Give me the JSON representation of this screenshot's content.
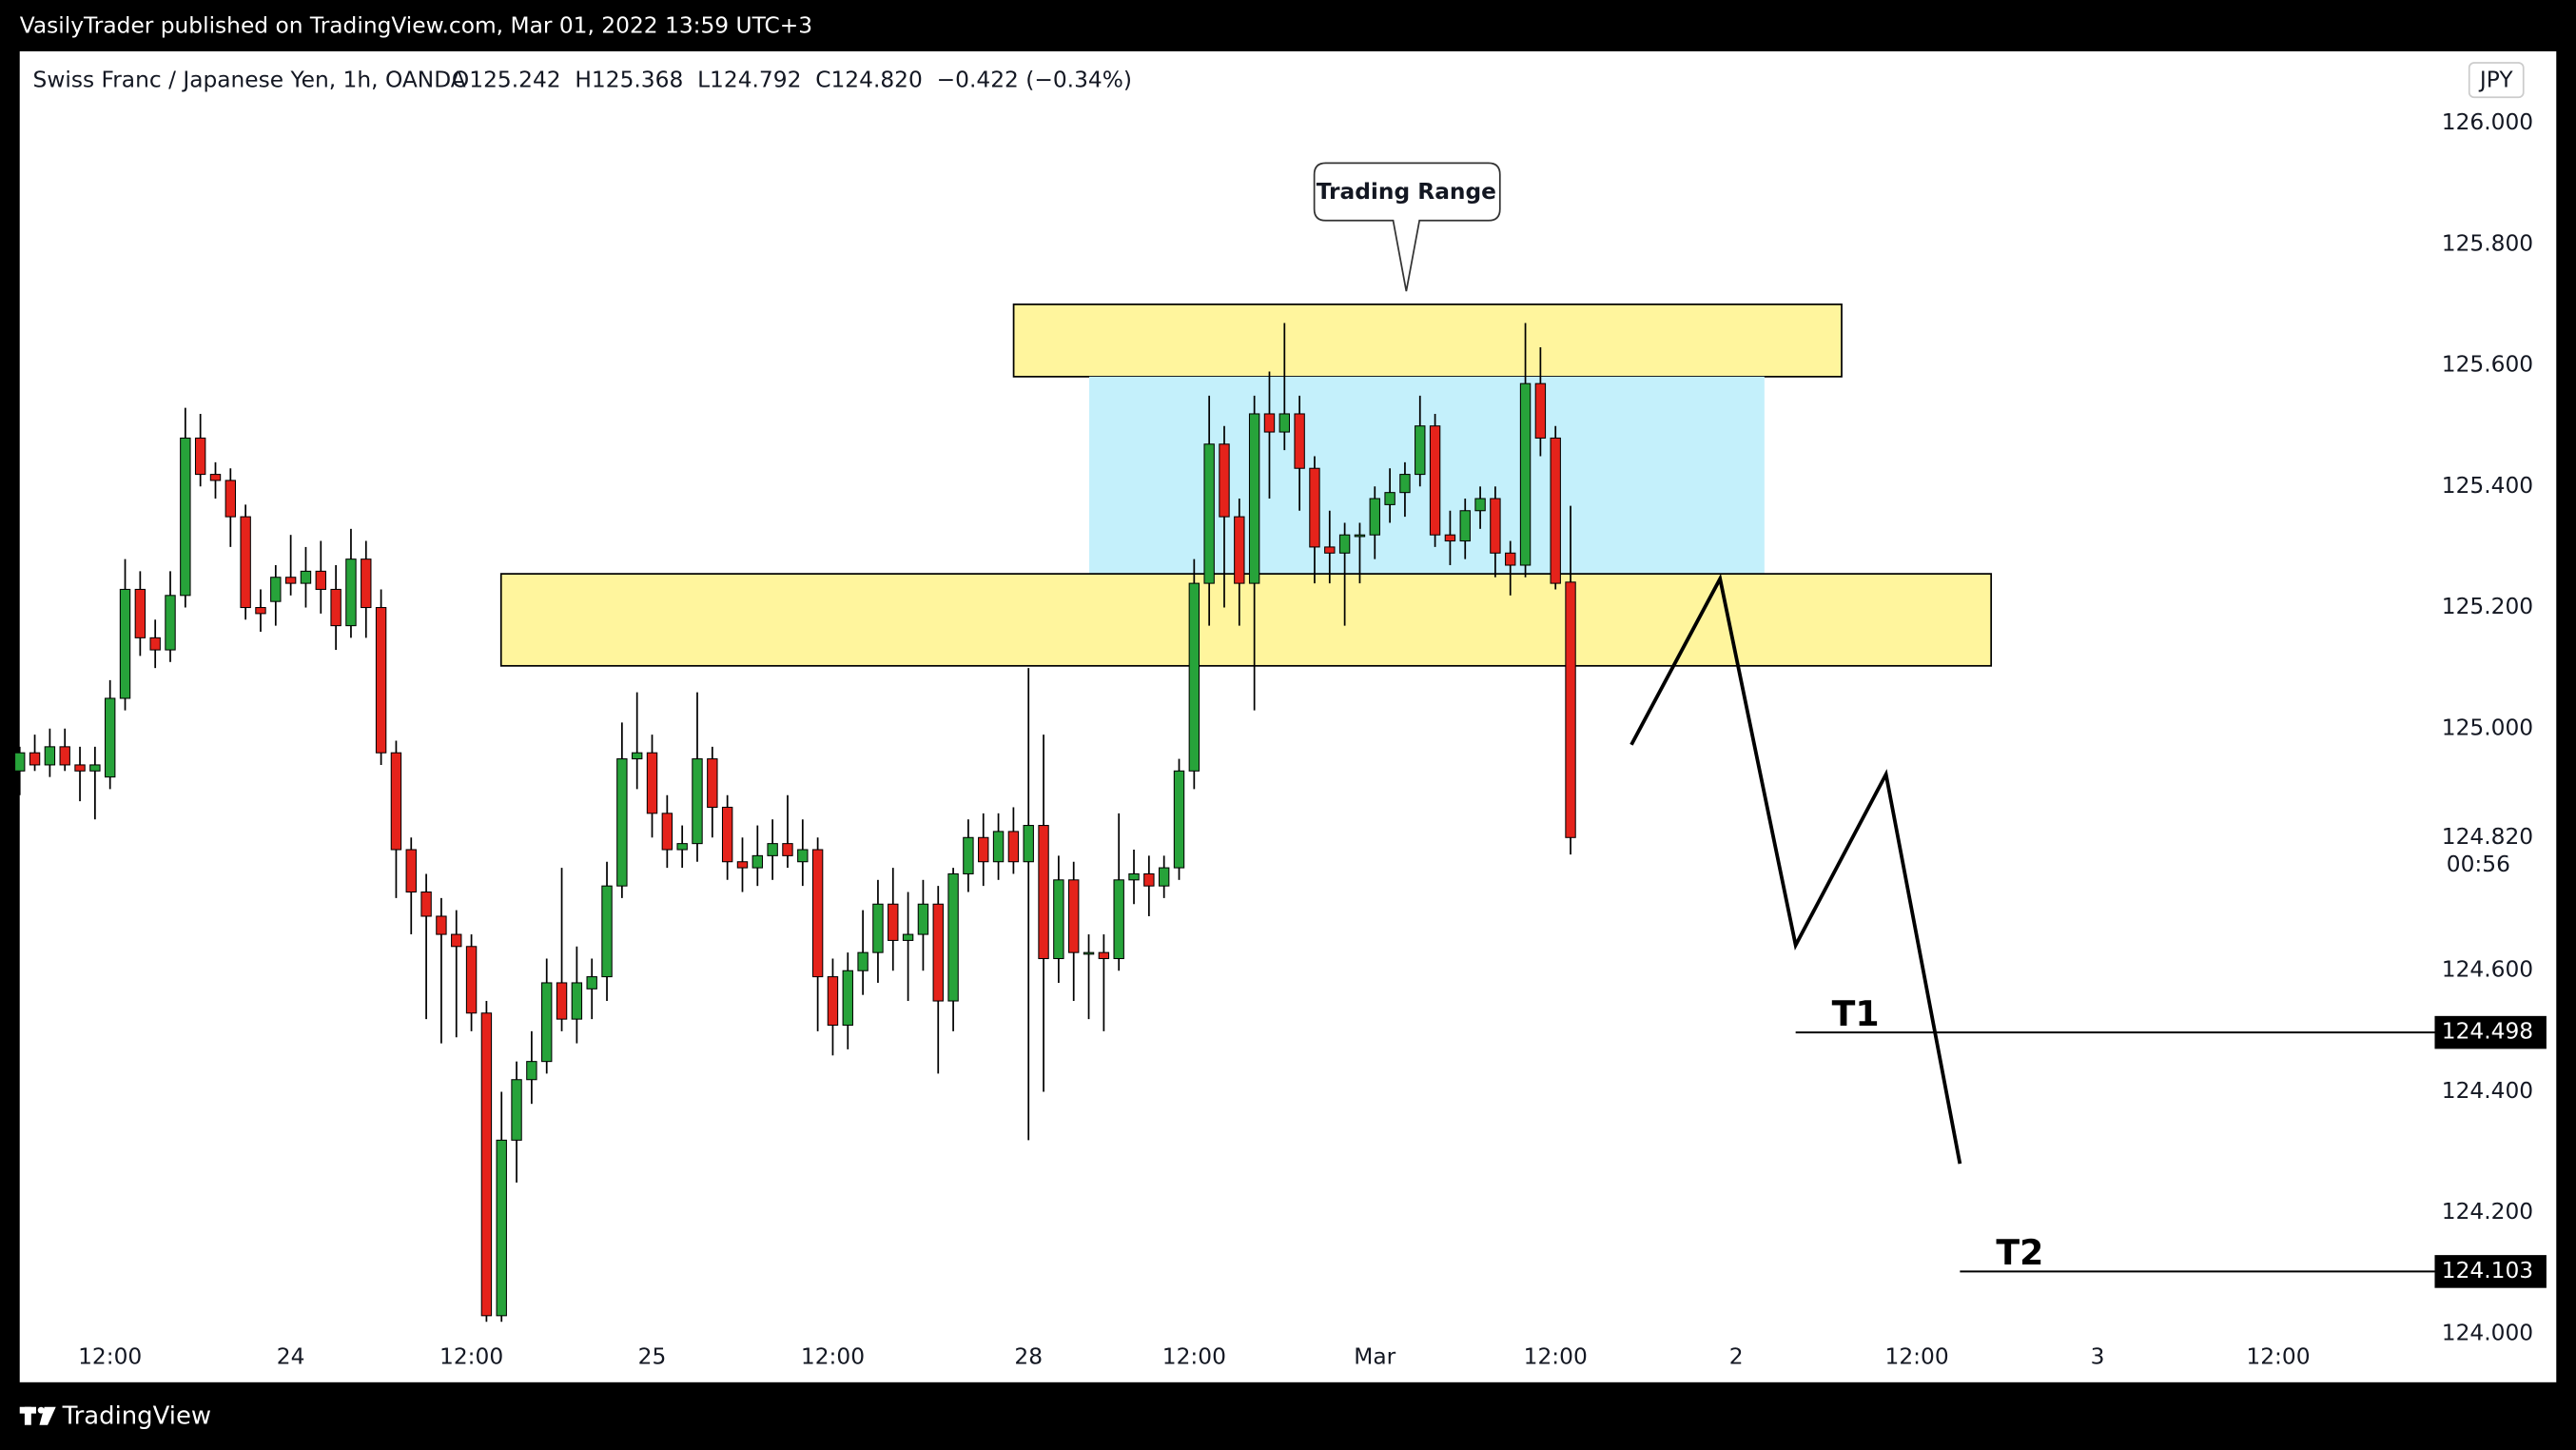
{
  "header": {
    "published": "VasilyTrader published on TradingView.com, Mar 01, 2022 13:59 UTC+3"
  },
  "footer": {
    "brand": "TradingView"
  },
  "chart_data": {
    "type": "candlestick",
    "symbol": "Swiss Franc / Japanese Yen, 1h, OANDA",
    "legend": "O125.242  H125.368  L124.792  C124.820  −0.422 (−0.34%)",
    "currency": "JPY",
    "annotation": "Trading Range",
    "up_color": "#27a33a",
    "down_color": "#e5231b",
    "ylim": [
      123.92,
      126.119
    ],
    "yticks": [
      {
        "value": 126,
        "label": "126.000"
      },
      {
        "value": 125.8,
        "label": "125.800"
      },
      {
        "value": 125.6,
        "label": "125.600"
      },
      {
        "value": 125.4,
        "label": "125.400"
      },
      {
        "value": 125.2,
        "label": "125.200"
      },
      {
        "value": 125,
        "label": "125.000"
      },
      {
        "value": 124.6,
        "label": "124.600"
      },
      {
        "value": 124.4,
        "label": "124.400"
      },
      {
        "value": 124.2,
        "label": "124.200"
      },
      {
        "value": 124,
        "label": "124.000"
      }
    ],
    "xticks": [
      {
        "value": 6,
        "label": "12:00"
      },
      {
        "value": 18,
        "label": "24"
      },
      {
        "value": 30,
        "label": "12:00"
      },
      {
        "value": 42,
        "label": "25"
      },
      {
        "value": 54,
        "label": "12:00"
      },
      {
        "value": 67,
        "label": "28"
      },
      {
        "value": 78,
        "label": "12:00"
      },
      {
        "value": 90,
        "label": "Mar"
      },
      {
        "value": 102,
        "label": "12:00"
      },
      {
        "value": 114,
        "label": "2"
      },
      {
        "value": 126,
        "label": "12:00"
      },
      {
        "value": 138,
        "label": "3"
      },
      {
        "value": 150,
        "label": "12:00"
      }
    ],
    "last_price": {
      "value": 124.82,
      "label": "124.820"
    },
    "countdown": "00:56",
    "targets": [
      {
        "name": "T1",
        "value": 124.498
      },
      {
        "name": "T2",
        "value": 124.103
      }
    ],
    "candles": [
      [
        124.93,
        124.97,
        124.89,
        124.96
      ],
      [
        124.96,
        124.99,
        124.93,
        124.94
      ],
      [
        124.94,
        125.0,
        124.92,
        124.97
      ],
      [
        124.97,
        125.0,
        124.93,
        124.94
      ],
      [
        124.94,
        124.97,
        124.88,
        124.93
      ],
      [
        124.93,
        124.97,
        124.85,
        124.94
      ],
      [
        124.92,
        125.08,
        124.9,
        125.05
      ],
      [
        125.05,
        125.28,
        125.03,
        125.23
      ],
      [
        125.23,
        125.26,
        125.12,
        125.15
      ],
      [
        125.15,
        125.18,
        125.1,
        125.13
      ],
      [
        125.13,
        125.26,
        125.11,
        125.22
      ],
      [
        125.22,
        125.53,
        125.2,
        125.48
      ],
      [
        125.48,
        125.52,
        125.4,
        125.42
      ],
      [
        125.42,
        125.44,
        125.38,
        125.41
      ],
      [
        125.41,
        125.43,
        125.3,
        125.35
      ],
      [
        125.35,
        125.37,
        125.18,
        125.2
      ],
      [
        125.2,
        125.23,
        125.16,
        125.19
      ],
      [
        125.21,
        125.27,
        125.17,
        125.25
      ],
      [
        125.25,
        125.32,
        125.22,
        125.24
      ],
      [
        125.24,
        125.3,
        125.2,
        125.26
      ],
      [
        125.26,
        125.31,
        125.19,
        125.23
      ],
      [
        125.23,
        125.27,
        125.13,
        125.17
      ],
      [
        125.17,
        125.33,
        125.15,
        125.28
      ],
      [
        125.28,
        125.31,
        125.15,
        125.2
      ],
      [
        125.2,
        125.23,
        124.94,
        124.96
      ],
      [
        124.96,
        124.98,
        124.72,
        124.8
      ],
      [
        124.8,
        124.82,
        124.66,
        124.73
      ],
      [
        124.73,
        124.76,
        124.52,
        124.69
      ],
      [
        124.69,
        124.72,
        124.48,
        124.66
      ],
      [
        124.66,
        124.7,
        124.49,
        124.64
      ],
      [
        124.64,
        124.66,
        124.5,
        124.53
      ],
      [
        124.53,
        124.55,
        124.02,
        124.03
      ],
      [
        124.03,
        124.4,
        124.02,
        124.32
      ],
      [
        124.32,
        124.45,
        124.25,
        124.42
      ],
      [
        124.42,
        124.5,
        124.38,
        124.45
      ],
      [
        124.45,
        124.62,
        124.43,
        124.58
      ],
      [
        124.58,
        124.77,
        124.5,
        124.52
      ],
      [
        124.52,
        124.64,
        124.48,
        124.58
      ],
      [
        124.57,
        124.62,
        124.52,
        124.59
      ],
      [
        124.59,
        124.78,
        124.55,
        124.74
      ],
      [
        124.74,
        125.01,
        124.72,
        124.95
      ],
      [
        124.95,
        125.06,
        124.9,
        124.96
      ],
      [
        124.96,
        124.99,
        124.82,
        124.86
      ],
      [
        124.86,
        124.89,
        124.77,
        124.8
      ],
      [
        124.8,
        124.84,
        124.77,
        124.81
      ],
      [
        124.81,
        125.06,
        124.78,
        124.95
      ],
      [
        124.95,
        124.97,
        124.82,
        124.87
      ],
      [
        124.87,
        124.89,
        124.75,
        124.78
      ],
      [
        124.78,
        124.82,
        124.73,
        124.77
      ],
      [
        124.77,
        124.84,
        124.74,
        124.79
      ],
      [
        124.79,
        124.85,
        124.75,
        124.81
      ],
      [
        124.81,
        124.89,
        124.77,
        124.79
      ],
      [
        124.78,
        124.85,
        124.74,
        124.8
      ],
      [
        124.8,
        124.82,
        124.5,
        124.59
      ],
      [
        124.59,
        124.62,
        124.46,
        124.51
      ],
      [
        124.51,
        124.63,
        124.47,
        124.6
      ],
      [
        124.6,
        124.7,
        124.56,
        124.63
      ],
      [
        124.63,
        124.75,
        124.58,
        124.71
      ],
      [
        124.71,
        124.77,
        124.6,
        124.65
      ],
      [
        124.65,
        124.73,
        124.55,
        124.66
      ],
      [
        124.66,
        124.75,
        124.6,
        124.71
      ],
      [
        124.71,
        124.74,
        124.43,
        124.55
      ],
      [
        124.55,
        124.77,
        124.5,
        124.76
      ],
      [
        124.76,
        124.85,
        124.73,
        124.82
      ],
      [
        124.82,
        124.86,
        124.74,
        124.78
      ],
      [
        124.78,
        124.86,
        124.75,
        124.83
      ],
      [
        124.83,
        124.87,
        124.76,
        124.78
      ],
      [
        124.78,
        125.1,
        124.32,
        124.84
      ],
      [
        124.84,
        124.99,
        124.4,
        124.62
      ],
      [
        124.62,
        124.79,
        124.58,
        124.75
      ],
      [
        124.75,
        124.78,
        124.55,
        124.63
      ],
      [
        124.63,
        124.66,
        124.52,
        124.63
      ],
      [
        124.63,
        124.66,
        124.5,
        124.62
      ],
      [
        124.62,
        124.86,
        124.6,
        124.75
      ],
      [
        124.75,
        124.8,
        124.71,
        124.76
      ],
      [
        124.76,
        124.79,
        124.69,
        124.74
      ],
      [
        124.74,
        124.79,
        124.72,
        124.77
      ],
      [
        124.77,
        124.95,
        124.75,
        124.93
      ],
      [
        124.93,
        125.28,
        124.9,
        125.24
      ],
      [
        125.24,
        125.55,
        125.17,
        125.47
      ],
      [
        125.47,
        125.5,
        125.2,
        125.35
      ],
      [
        125.35,
        125.38,
        125.17,
        125.24
      ],
      [
        125.24,
        125.55,
        125.03,
        125.52
      ],
      [
        125.52,
        125.59,
        125.38,
        125.49
      ],
      [
        125.49,
        125.67,
        125.46,
        125.52
      ],
      [
        125.52,
        125.55,
        125.36,
        125.43
      ],
      [
        125.43,
        125.45,
        125.24,
        125.3
      ],
      [
        125.3,
        125.36,
        125.24,
        125.29
      ],
      [
        125.29,
        125.34,
        125.17,
        125.32
      ],
      [
        125.32,
        125.34,
        125.24,
        125.32
      ],
      [
        125.32,
        125.4,
        125.28,
        125.38
      ],
      [
        125.37,
        125.43,
        125.34,
        125.39
      ],
      [
        125.39,
        125.44,
        125.35,
        125.42
      ],
      [
        125.42,
        125.55,
        125.4,
        125.5
      ],
      [
        125.5,
        125.52,
        125.3,
        125.32
      ],
      [
        125.32,
        125.36,
        125.27,
        125.31
      ],
      [
        125.31,
        125.38,
        125.28,
        125.36
      ],
      [
        125.36,
        125.4,
        125.33,
        125.38
      ],
      [
        125.38,
        125.4,
        125.25,
        125.29
      ],
      [
        125.29,
        125.31,
        125.22,
        125.27
      ],
      [
        125.27,
        125.67,
        125.25,
        125.57
      ],
      [
        125.57,
        125.63,
        125.45,
        125.48
      ],
      [
        125.48,
        125.5,
        125.23,
        125.24
      ],
      [
        125.242,
        125.368,
        124.792,
        124.82
      ]
    ]
  }
}
